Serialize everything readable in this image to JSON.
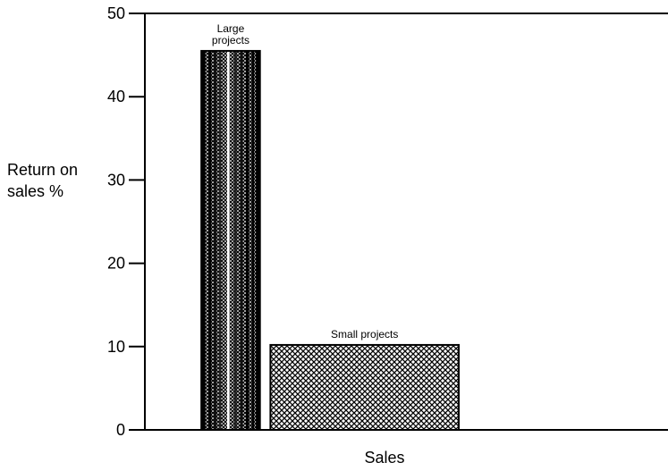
{
  "chart_data": {
    "type": "bar",
    "title": "",
    "ylabel_lines": [
      "Return on",
      "sales %"
    ],
    "xlabel": "Sales",
    "ylim": [
      0,
      50
    ],
    "yticks": [
      0,
      10,
      20,
      30,
      40,
      50
    ],
    "grid": false,
    "bars": [
      {
        "label_lines": [
          "Large",
          "projects"
        ],
        "value": 45.5,
        "sales_range": [
          0.27,
          0.55
        ],
        "pattern": "dense-vertical-stripes"
      },
      {
        "label_lines": [
          "Small projects"
        ],
        "value": 10.2,
        "sales_range": [
          0.6,
          1.5
        ],
        "pattern": "crosshatch"
      }
    ]
  }
}
